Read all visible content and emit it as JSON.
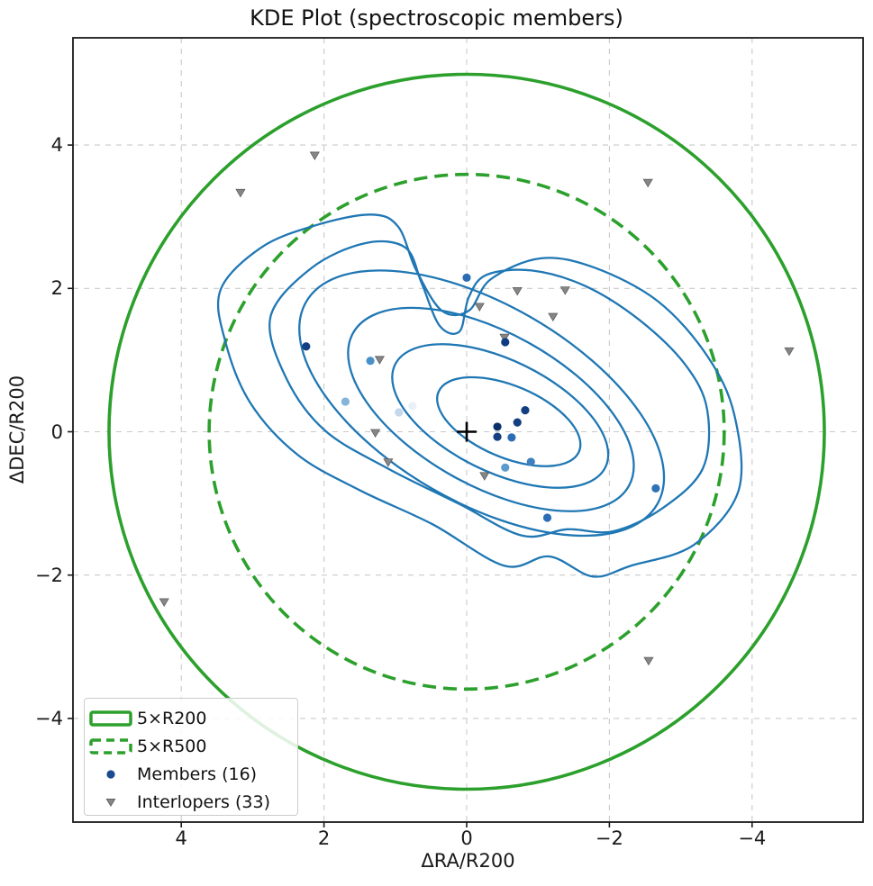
{
  "title": "KDE Plot (spectroscopic members)",
  "axes": {
    "xlabel": "ΔRA/R200",
    "ylabel": "ΔDEC/R200",
    "x_inverted": true,
    "xlim": [
      5.54,
      -5.54
    ],
    "ylim": [
      -5.45,
      5.5
    ],
    "x_ticks": [
      4,
      2,
      0,
      -2,
      -4
    ],
    "x_tick_labels": [
      "4",
      "2",
      "0",
      "−2",
      "−4"
    ],
    "y_ticks": [
      4,
      2,
      0,
      -2,
      -4
    ],
    "y_tick_labels": [
      "4",
      "2",
      "0",
      "−2",
      "−4"
    ],
    "grid": true
  },
  "legend": {
    "position": "lower-left",
    "items": [
      {
        "label": "5×R200",
        "marker": "solid-outline-rect"
      },
      {
        "label": "5×R500",
        "marker": "dashed-outline-rect"
      },
      {
        "label": "Members (16)",
        "marker": "dot"
      },
      {
        "label": "Interlopers (33)",
        "marker": "triangle-down"
      }
    ]
  },
  "colors": {
    "contour_blue": "#1f77b4",
    "circle_green": "#2ca02c",
    "interloper_gray": "#868686",
    "interloper_edge": "#5f5f5f",
    "member_legend": "#1a4a8f",
    "grid": "#c9c9c9",
    "spine": "#1a1a1a",
    "center_marker": "#000000",
    "background": "#ffffff"
  },
  "chart_data": {
    "type": "scatter",
    "title": "KDE Plot (spectroscopic members)",
    "xlabel": "ΔRA/R200",
    "ylabel": "ΔDEC/R200",
    "series": [
      {
        "name": "Members (16)",
        "marker": "circle",
        "points": [
          {
            "x": 2.25,
            "y": 1.19,
            "color": "#123f80"
          },
          {
            "x": 1.35,
            "y": 0.99,
            "color": "#4a90c8"
          },
          {
            "x": 1.7,
            "y": 0.42,
            "color": "#85b4d9"
          },
          {
            "x": 0.95,
            "y": 0.27,
            "color": "#c3d8ec"
          },
          {
            "x": 0.76,
            "y": 0.36,
            "color": "#e9f0f7"
          },
          {
            "x": 0.0,
            "y": 2.15,
            "color": "#2b6cb5"
          },
          {
            "x": -0.54,
            "y": 1.25,
            "color": "#0f3c80"
          },
          {
            "x": -0.82,
            "y": 0.3,
            "color": "#123f80"
          },
          {
            "x": -0.71,
            "y": 0.13,
            "color": "#123f80"
          },
          {
            "x": -0.43,
            "y": 0.07,
            "color": "#0a306b"
          },
          {
            "x": -0.43,
            "y": -0.07,
            "color": "#123f80"
          },
          {
            "x": -0.63,
            "y": -0.08,
            "color": "#2b6cb5"
          },
          {
            "x": -0.9,
            "y": -0.42,
            "color": "#3d80bd"
          },
          {
            "x": -0.54,
            "y": -0.5,
            "color": "#5c9bce"
          },
          {
            "x": -1.13,
            "y": -1.2,
            "color": "#2b6cb5"
          },
          {
            "x": -2.65,
            "y": -0.79,
            "color": "#2e72b8"
          }
        ]
      },
      {
        "name": "Interlopers (33)",
        "marker": "triangle-down",
        "visible_points": [
          {
            "x": 2.13,
            "y": 3.86
          },
          {
            "x": 3.17,
            "y": 3.34
          },
          {
            "x": -2.54,
            "y": 3.48
          },
          {
            "x": -4.52,
            "y": 1.13
          },
          {
            "x": -0.71,
            "y": 1.97
          },
          {
            "x": -1.38,
            "y": 1.98
          },
          {
            "x": -0.18,
            "y": 1.75
          },
          {
            "x": -1.21,
            "y": 1.61
          },
          {
            "x": -0.53,
            "y": 1.32
          },
          {
            "x": 1.22,
            "y": 1.01
          },
          {
            "x": 1.28,
            "y": -0.01
          },
          {
            "x": 1.1,
            "y": -0.42
          },
          {
            "x": -0.25,
            "y": -0.61
          },
          {
            "x": 4.24,
            "y": -2.37
          },
          {
            "x": -2.55,
            "y": -3.19
          }
        ]
      }
    ],
    "circles": [
      {
        "name": "5×R200",
        "cx": 0,
        "cy": 0,
        "radius": 5.0,
        "style": "solid"
      },
      {
        "name": "5×R500",
        "cx": 0,
        "cy": 0,
        "radius": 3.6,
        "style": "dashed"
      }
    ],
    "center_marker": {
      "x": 0,
      "y": 0,
      "symbol": "+"
    },
    "kde_contours": {
      "levels": 6,
      "outer_paths": [
        [
          [
            3.45,
            1.98
          ],
          [
            2.88,
            2.57
          ],
          [
            2.12,
            2.88
          ],
          [
            1.34,
            3.03
          ],
          [
            0.96,
            2.86
          ],
          [
            0.71,
            2.26
          ],
          [
            0.35,
            1.69
          ],
          [
            -0.03,
            1.69
          ],
          [
            -0.34,
            2.13
          ],
          [
            -1.04,
            2.42
          ],
          [
            -1.79,
            2.29
          ],
          [
            -2.68,
            1.82
          ],
          [
            -3.37,
            1.06
          ],
          [
            -3.75,
            0.24
          ],
          [
            -3.81,
            -0.82
          ],
          [
            -3.18,
            -1.58
          ],
          [
            -2.3,
            -1.87
          ],
          [
            -1.77,
            -2.02
          ],
          [
            -1.16,
            -1.74
          ],
          [
            -0.53,
            -1.87
          ],
          [
            0.48,
            -1.29
          ],
          [
            1.49,
            -0.82
          ],
          [
            2.37,
            -0.32
          ],
          [
            3.03,
            0.4
          ],
          [
            3.38,
            1.25
          ]
        ],
        [
          [
            2.75,
            1.6
          ],
          [
            2.18,
            2.28
          ],
          [
            1.43,
            2.63
          ],
          [
            0.86,
            2.57
          ],
          [
            0.63,
            2.07
          ],
          [
            0.38,
            1.48
          ],
          [
            0.1,
            1.4
          ],
          [
            -0.03,
            1.88
          ],
          [
            -0.28,
            2.19
          ],
          [
            -0.91,
            2.25
          ],
          [
            -1.67,
            2.03
          ],
          [
            -2.42,
            1.56
          ],
          [
            -3.06,
            0.94
          ],
          [
            -3.37,
            0.31
          ],
          [
            -3.31,
            -0.51
          ],
          [
            -2.74,
            -1.07
          ],
          [
            -2.05,
            -1.39
          ],
          [
            -1.41,
            -1.36
          ],
          [
            -0.78,
            -1.45
          ],
          [
            0.1,
            -1.01
          ],
          [
            1.11,
            -0.51
          ],
          [
            1.99,
            0.02
          ],
          [
            2.53,
            0.75
          ]
        ]
      ],
      "inner_ellipses": [
        {
          "cx": -0.21,
          "cy": 0.4,
          "rx": 2.84,
          "ry": 1.38,
          "rot": 30
        },
        {
          "cx": -0.34,
          "cy": 0.31,
          "rx": 2.21,
          "ry": 1.07,
          "rot": 29
        },
        {
          "cx": -0.47,
          "cy": 0.22,
          "rx": 1.64,
          "ry": 0.78,
          "rot": 26
        },
        {
          "cx": -0.59,
          "cy": 0.14,
          "rx": 1.07,
          "ry": 0.5,
          "rot": 23
        }
      ]
    }
  }
}
